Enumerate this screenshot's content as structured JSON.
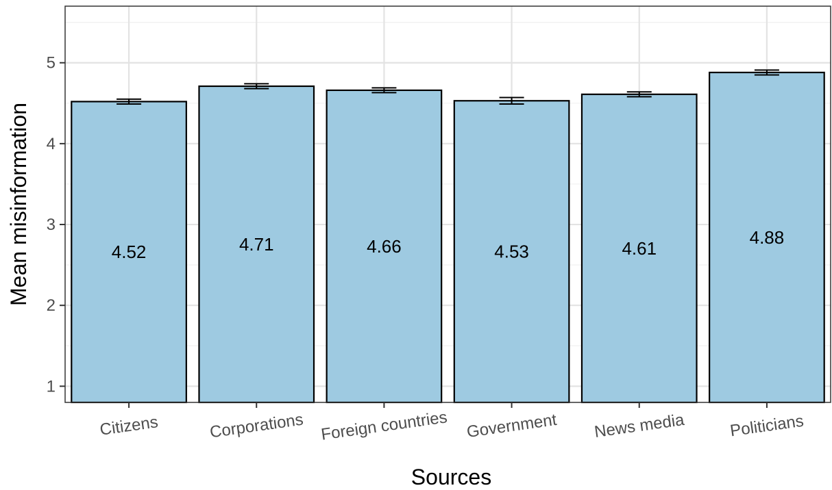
{
  "chart_data": {
    "type": "bar",
    "title": "",
    "xlabel": "Sources",
    "ylabel": "Mean misinformation",
    "categories": [
      "Citizens",
      "Corporations",
      "Foreign countries",
      "Government",
      "News media",
      "Politicians"
    ],
    "values": [
      4.52,
      4.71,
      4.66,
      4.53,
      4.61,
      4.88
    ],
    "data_labels": [
      "4.52",
      "4.71",
      "4.66",
      "4.53",
      "4.61",
      "4.88"
    ],
    "error_low": [
      4.49,
      4.68,
      4.63,
      4.49,
      4.58,
      4.85
    ],
    "error_high": [
      4.55,
      4.74,
      4.69,
      4.57,
      4.64,
      4.91
    ],
    "ylim": [
      0.8,
      5.7
    ],
    "yticks": [
      1,
      2,
      3,
      4,
      5
    ],
    "ytick_labels": [
      "1",
      "2",
      "3",
      "4",
      "5"
    ],
    "bar_color": "#9ecae1",
    "grid": true,
    "legend": "none"
  }
}
